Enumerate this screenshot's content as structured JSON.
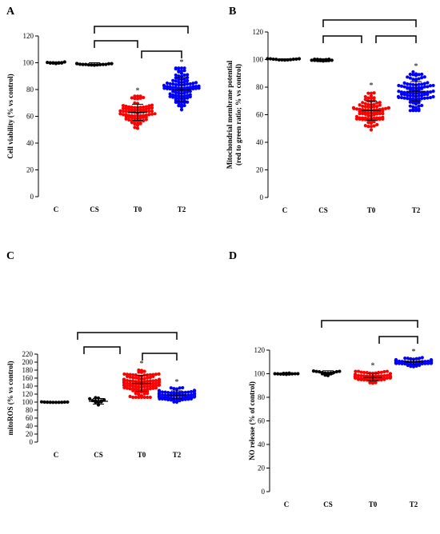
{
  "chart_data": [
    {
      "panel": "A",
      "type": "scatter",
      "categories": [
        "C",
        "CS",
        "T0",
        "T2"
      ],
      "ylabel": "Cell viability (% vs control)",
      "ylim": [
        0,
        120
      ],
      "yticks": [
        0,
        20,
        40,
        60,
        80,
        100,
        120
      ],
      "series": [
        {
          "category": "C",
          "color": "#000000",
          "mean": 100,
          "spread": 0.6,
          "sd": 0.5,
          "n": 12
        },
        {
          "category": "CS",
          "color": "#000000",
          "mean": 99,
          "spread": 1.5,
          "sd": 1,
          "n": 14
        },
        {
          "category": "T0",
          "color": "#ff0000",
          "mean": 63,
          "spread": 12,
          "sd": 6,
          "n": 80
        },
        {
          "category": "T2",
          "color": "#0000ff",
          "mean": 80,
          "spread": 16,
          "sd": 9,
          "n": 100
        }
      ],
      "significance": [
        "T0",
        "T2"
      ],
      "significance_mark": "*"
    },
    {
      "panel": "B",
      "type": "scatter",
      "categories": [
        "C",
        "CS",
        "T0",
        "T2"
      ],
      "ylabel": "Mitochondrial membrane potential (red to green ratio; % vs control)",
      "ylabel_lines": [
        "Mitochondrial membrane potential",
        "(red to green ratio; % vs control)"
      ],
      "ylim": [
        0,
        120
      ],
      "yticks": [
        0,
        20,
        40,
        60,
        80,
        100,
        120
      ],
      "series": [
        {
          "category": "C",
          "color": "#000000",
          "mean": 100,
          "spread": 0.6,
          "sd": 0.5,
          "n": 12
        },
        {
          "category": "CS",
          "color": "#000000",
          "mean": 99.5,
          "spread": 1.2,
          "sd": 1,
          "n": 14
        },
        {
          "category": "T0",
          "color": "#ff0000",
          "mean": 63,
          "spread": 14,
          "sd": 7,
          "n": 90
        },
        {
          "category": "T2",
          "color": "#0000ff",
          "mean": 77,
          "spread": 14,
          "sd": 7,
          "n": 100
        }
      ],
      "significance": [
        "T0",
        "T2"
      ],
      "significance_mark": "*"
    },
    {
      "panel": "C",
      "type": "scatter",
      "categories": [
        "C",
        "CS",
        "T0",
        "T2"
      ],
      "ylabel": "mitoROS (% vs control)",
      "ylim": [
        0,
        220
      ],
      "yticks": [
        0,
        20,
        40,
        60,
        80,
        100,
        120,
        140,
        160,
        180,
        200,
        220
      ],
      "series": [
        {
          "category": "C",
          "color": "#000000",
          "mean": 100,
          "spread": 0.6,
          "sd": 0.5,
          "n": 10
        },
        {
          "category": "CS",
          "color": "#000000",
          "mean": 102,
          "spread": 9,
          "sd": 7,
          "n": 12
        },
        {
          "category": "T0",
          "color": "#ff0000",
          "mean": 147,
          "spread": 35,
          "sd": 20,
          "n": 110
        },
        {
          "category": "T2",
          "color": "#0000ff",
          "mean": 118,
          "spread": 18,
          "sd": 10,
          "n": 90
        }
      ],
      "significance": [
        "T0",
        "T2"
      ],
      "significance_mark": "*"
    },
    {
      "panel": "D",
      "type": "scatter",
      "categories": [
        "C",
        "CS",
        "T0",
        "T2"
      ],
      "ylabel": "NO release (% of control)",
      "ylim": [
        0,
        120
      ],
      "yticks": [
        0,
        20,
        40,
        60,
        80,
        100,
        120
      ],
      "series": [
        {
          "category": "C",
          "color": "#000000",
          "mean": 100,
          "spread": 0.5,
          "sd": 0.5,
          "n": 12
        },
        {
          "category": "CS",
          "color": "#000000",
          "mean": 101,
          "spread": 2.5,
          "sd": 1.5,
          "n": 14
        },
        {
          "category": "T0",
          "color": "#ff0000",
          "mean": 97,
          "spread": 5,
          "sd": 3,
          "n": 70
        },
        {
          "category": "T2",
          "color": "#0000ff",
          "mean": 110,
          "spread": 4,
          "sd": 2,
          "n": 70
        }
      ],
      "significance": [
        "T0",
        "T2"
      ],
      "significance_mark": "*"
    }
  ]
}
